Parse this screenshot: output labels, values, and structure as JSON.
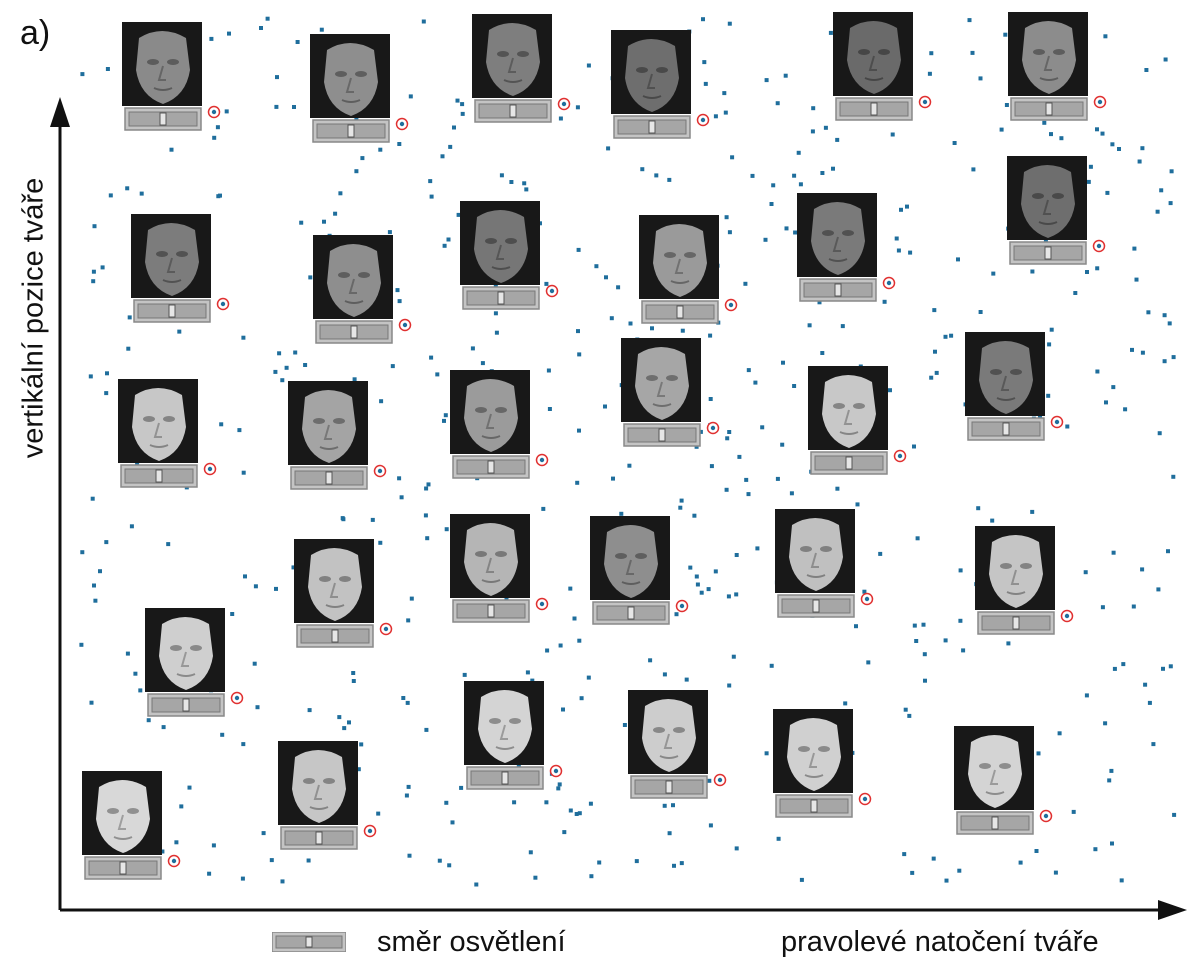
{
  "panel_label": "a)",
  "chart_data": {
    "type": "scatter",
    "title": "",
    "xlabel": "pravolevé natočení tváře",
    "ylabel": "vertikální pozice tváře",
    "legend": {
      "entries": [
        "směr osvětlení"
      ],
      "placement": "bottom-left"
    },
    "axes": {
      "ticks": "none",
      "grid": false,
      "scale": "unlabeled"
    },
    "points_note": "scattered blue dots with face-image thumbnails overlaid",
    "colors": {
      "points": "#1f6e9c",
      "highlight": "#e03030",
      "axis": "#111111",
      "slider": "#b9b9b9"
    }
  }
}
